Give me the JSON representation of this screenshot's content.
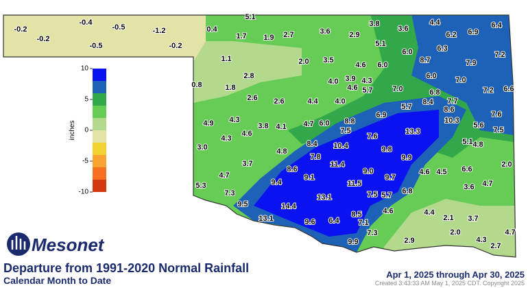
{
  "header": {
    "logo": "Mesonet",
    "title": "Departure from 1991-2020 Normal Rainfall",
    "subtitle": "Calendar Month to Date",
    "date_range": "Apr 1, 2025 through Apr 30, 2025",
    "credit": "Created 3:43:33 AM May 1, 2025 CDT. Copyright 2025"
  },
  "legend": {
    "label": "inches",
    "lim": [
      -10,
      10
    ],
    "ticks": [
      10,
      5,
      0,
      -5,
      -10
    ],
    "colors": [
      "#0b12f0",
      "#1e62b8",
      "#33a84a",
      "#66cc55",
      "#b3d98c",
      "#e3e3a8",
      "#f2d233",
      "#f9a333",
      "#f7701f",
      "#d23a0e"
    ]
  },
  "stations": {
    "values": [
      "-0.2",
      "-0.2",
      "-0.4",
      "-0.5",
      "-0.5",
      "-1.2",
      "-0.2",
      "0.4",
      "5.1",
      "1.7",
      "1.9",
      "2.7",
      "3.6",
      "2.9",
      "3.8",
      "3.6",
      "4.4",
      "6.2",
      "6.9",
      "6.4",
      "5.1",
      "1.1",
      "2.0",
      "3.5",
      "4.6",
      "6.0",
      "6.0",
      "6.3",
      "8.7",
      "7.9",
      "7.2",
      "2.8",
      "3.9",
      "4.3",
      "4.0",
      "6.0",
      "7.0",
      "0.8",
      "1.8",
      "4.6",
      "5.7",
      "7.0",
      "6.8",
      "7.2",
      "6.6",
      "2.6",
      "2.6",
      "4.4",
      "4.0",
      "8.4",
      "7.7",
      "5.7",
      "8.6",
      "6.9",
      "7.6",
      "10.3",
      "13.3",
      "4.9",
      "4.3",
      "3.8",
      "4.1",
      "4.7",
      "6.0",
      "8.8",
      "7.5",
      "5.6",
      "7.5",
      "4.6",
      "4.3",
      "7.6",
      "5.1",
      "4.8",
      "8.4",
      "10.4",
      "9.8",
      "3.0",
      "4.8",
      "7.8",
      "9.9",
      "11.4",
      "3.7",
      "2.0",
      "8.6",
      "9.0",
      "4.6",
      "4.5",
      "6.6",
      "4.7",
      "9.1",
      "9.7",
      "9.4",
      "5.3",
      "11.5",
      "3.6",
      "4.7",
      "6.8",
      "7.3",
      "7.5",
      "5.7",
      "13.1",
      "9.5",
      "14.4",
      "8.5",
      "4.6",
      "4.4",
      "13.1",
      "9.6",
      "6.4",
      "7.1",
      "2.1",
      "3.7",
      "7.3",
      "2.0",
      "4.7",
      "9.9",
      "2.9",
      "4.3",
      "2.7"
    ]
  }
}
